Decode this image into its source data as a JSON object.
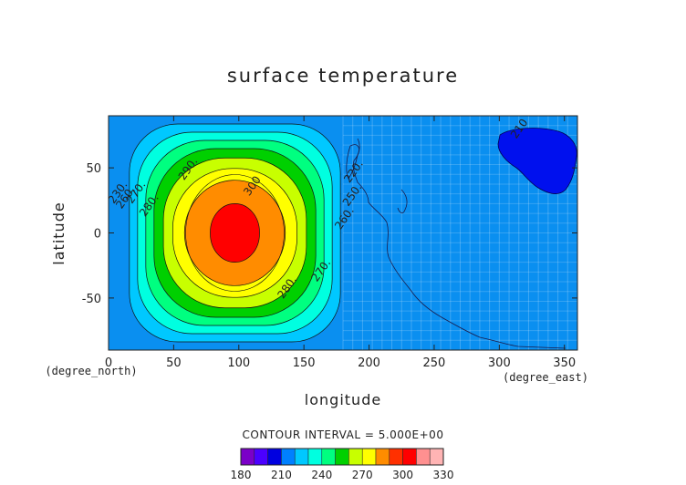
{
  "chart_data": {
    "type": "heatmap",
    "title": "surface temperature",
    "xlabel": "longitude",
    "ylabel": "latitude",
    "x_unit": "(degree_east)",
    "y_unit": "(degree_north)",
    "xlim": [
      0,
      360
    ],
    "ylim": [
      -90,
      90
    ],
    "x_ticks": [
      0,
      50,
      100,
      150,
      200,
      250,
      300,
      350
    ],
    "y_ticks": [
      -50,
      0,
      50
    ],
    "contour_interval_text": "CONTOUR INTERVAL = 5.000E+00",
    "colorbar": {
      "min": 180,
      "max": 330,
      "step": 10,
      "tick_values": [
        180,
        210,
        240,
        270,
        300,
        330
      ],
      "colors": [
        "#7b00c8",
        "#4b00ff",
        "#0000e0",
        "#0080ff",
        "#00c8ff",
        "#00ffe0",
        "#00ff80",
        "#00d000",
        "#c8ff00",
        "#ffff00",
        "#ff8c00",
        "#ff3000",
        "#ff0000",
        "#ff9090",
        "#ffb4b4"
      ]
    },
    "fields": {
      "warm_center": {
        "lon": 97,
        "lat": 0,
        "value": 305
      },
      "background_value": 215,
      "cold_patch": {
        "lon": 335,
        "lat": 60,
        "value": 205
      }
    },
    "contour_labels": [
      {
        "text": "300",
        "lon": 108,
        "lat": 28
      },
      {
        "text": "290.",
        "lon": 58,
        "lat": 40
      },
      {
        "text": "280.",
        "lon": 28,
        "lat": 12
      },
      {
        "text": "270.",
        "lon": 18,
        "lat": 22
      },
      {
        "text": "260.",
        "lon": 10,
        "lat": 18
      },
      {
        "text": "230.",
        "lon": 4,
        "lat": 22
      },
      {
        "text": "280.",
        "lon": 134,
        "lat": -51
      },
      {
        "text": "270.",
        "lon": 160,
        "lat": -38
      },
      {
        "text": "260.",
        "lon": 178,
        "lat": 2
      },
      {
        "text": "250.",
        "lon": 184,
        "lat": 20
      },
      {
        "text": "220.",
        "lon": 185,
        "lat": 38
      },
      {
        "text": "210",
        "lon": 313,
        "lat": 72
      }
    ]
  }
}
